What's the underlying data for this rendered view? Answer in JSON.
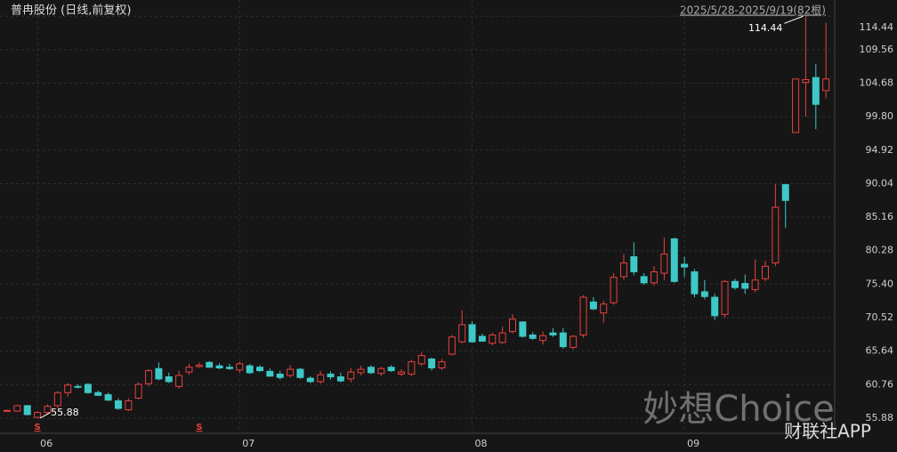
{
  "chart_data": {
    "type": "candlestick",
    "title": "普冉股份 (日线,前复权)",
    "subtitle": "2025/5/28-2025/9/19(82根)",
    "watermark": "妙想Choice",
    "brand": "财联社APP",
    "up_color": "#e8413f",
    "down_color": "#3ec8c8",
    "categories": [
      null,
      null,
      null,
      "06",
      null,
      null,
      null,
      null,
      null,
      null,
      null,
      null,
      null,
      null,
      null,
      null,
      null,
      null,
      null,
      null,
      null,
      null,
      null,
      "07",
      null,
      null,
      null,
      null,
      null,
      null,
      null,
      null,
      null,
      null,
      null,
      null,
      null,
      null,
      null,
      null,
      null,
      null,
      null,
      null,
      null,
      null,
      "08",
      null,
      null,
      null,
      null,
      null,
      null,
      null,
      null,
      null,
      null,
      null,
      null,
      null,
      null,
      null,
      null,
      null,
      null,
      null,
      null,
      "09",
      null,
      null,
      null,
      null,
      null,
      null,
      null,
      null,
      null,
      null,
      null,
      null,
      null,
      null
    ],
    "signals": [
      null,
      null,
      null,
      "S",
      null,
      null,
      null,
      null,
      null,
      null,
      null,
      null,
      null,
      null,
      null,
      null,
      null,
      null,
      null,
      "S",
      null,
      null,
      null,
      null,
      null,
      null,
      null,
      null,
      null,
      null,
      null,
      null,
      null,
      null,
      null,
      null,
      null,
      null,
      null,
      null,
      null,
      null,
      null,
      null,
      null,
      null,
      null,
      null,
      null,
      null,
      null,
      null,
      null,
      null,
      null,
      null,
      null,
      null,
      null,
      null,
      null,
      null,
      null,
      null,
      null,
      null,
      null,
      null,
      null,
      null,
      null,
      null,
      null,
      null,
      null,
      null,
      null,
      null,
      null,
      null,
      null,
      null
    ],
    "open": [
      57,
      56.9,
      57.7,
      56.0,
      56.7,
      57.7,
      59.6,
      60.5,
      60.8,
      59.6,
      59.3,
      58.4,
      57.1,
      58.8,
      60.9,
      63.1,
      61.9,
      60.5,
      62.6,
      63.4,
      64.0,
      63.5,
      63.3,
      62.9,
      63.5,
      63.3,
      62.7,
      62.3,
      62.1,
      63.0,
      61.7,
      61.2,
      62.3,
      61.9,
      61.6,
      62.5,
      63.3,
      62.4,
      63.3,
      62.3,
      62.3,
      63.8,
      64.5,
      63.2,
      65.2,
      67.0,
      69.5,
      67.8,
      66.8,
      66.9,
      68.5,
      69.9,
      68.0,
      67.2,
      68.3,
      68.3,
      66.2,
      68.0,
      72.8,
      71.2,
      72.7,
      76.5,
      79.4,
      76.5,
      75.6,
      77.0,
      82.0,
      78.3,
      77.2,
      74.3,
      73.5,
      71.0,
      75.8,
      75.5,
      74.6,
      76.2,
      78.5,
      89.9,
      97.5,
      104.8,
      105.5,
      103.6
    ],
    "high": [
      57.1,
      57.8,
      57.8,
      56.9,
      57.9,
      59.8,
      61.0,
      60.8,
      61.0,
      59.9,
      59.6,
      58.8,
      58.8,
      61.1,
      63.0,
      64.0,
      62.5,
      62.8,
      63.8,
      64.0,
      64.2,
      63.9,
      63.8,
      64.1,
      63.8,
      63.6,
      63.1,
      62.8,
      63.6,
      63.2,
      62.0,
      62.8,
      62.7,
      62.5,
      63.2,
      63.5,
      63.6,
      63.4,
      63.6,
      63.0,
      64.4,
      65.5,
      64.7,
      64.5,
      68.0,
      71.6,
      70.0,
      68.2,
      68.3,
      69.2,
      71.0,
      70.0,
      68.4,
      68.5,
      69.0,
      69.0,
      68.0,
      73.8,
      73.5,
      73.0,
      77.0,
      79.8,
      81.5,
      77.0,
      78.0,
      82.2,
      82.2,
      79.4,
      77.6,
      76.0,
      74.0,
      76.0,
      76.2,
      76.8,
      79.0,
      78.8,
      90.0,
      90.0,
      105.3,
      114.44,
      107.5,
      113.5
    ],
    "low": [
      56.9,
      56.8,
      56.3,
      55.88,
      56.5,
      57.3,
      59.0,
      60.2,
      59.4,
      59.1,
      58.4,
      57.1,
      56.9,
      58.6,
      60.5,
      61.4,
      61.0,
      60.2,
      62.2,
      63.2,
      63.2,
      63.0,
      62.9,
      62.5,
      62.3,
      62.6,
      61.9,
      61.5,
      61.8,
      61.6,
      61.0,
      60.9,
      61.5,
      61.1,
      61.1,
      62.1,
      62.3,
      62.0,
      62.6,
      62.0,
      62.0,
      63.5,
      62.8,
      62.9,
      65.0,
      66.8,
      66.9,
      67.0,
      66.5,
      66.7,
      68.2,
      67.6,
      67.3,
      66.6,
      67.7,
      66.0,
      65.9,
      67.6,
      71.6,
      69.8,
      72.4,
      76.0,
      76.7,
      75.3,
      75.2,
      76.0,
      75.6,
      76.4,
      73.5,
      73.2,
      70.2,
      70.5,
      74.6,
      74.0,
      74.2,
      75.8,
      78.0,
      83.6,
      97.5,
      99.8,
      98.0,
      102.5
    ],
    "close": [
      57.0,
      57.7,
      56.4,
      56.7,
      57.6,
      59.6,
      60.7,
      60.4,
      59.6,
      59.2,
      58.5,
      57.3,
      58.4,
      60.8,
      62.8,
      61.6,
      61.2,
      62.1,
      63.3,
      63.6,
      63.3,
      63.2,
      63.1,
      63.8,
      62.5,
      62.8,
      62.0,
      61.8,
      63.0,
      61.8,
      61.2,
      62.2,
      61.9,
      61.3,
      62.6,
      63.0,
      62.5,
      63.1,
      62.8,
      62.6,
      64.1,
      65.0,
      63.2,
      64.1,
      67.7,
      69.5,
      67.0,
      67.1,
      68.0,
      68.3,
      70.3,
      67.8,
      67.5,
      67.9,
      68.0,
      66.3,
      67.8,
      73.5,
      71.8,
      72.5,
      76.4,
      78.5,
      77.2,
      75.6,
      77.2,
      79.8,
      75.8,
      77.9,
      74.0,
      73.6,
      70.8,
      75.8,
      74.9,
      74.8,
      76.0,
      78.0,
      86.6,
      87.6,
      105.3,
      105.2,
      101.6,
      105.3
    ],
    "max_label": 114.44,
    "min_label": 55.88,
    "ylim": [
      53.67,
      114.6
    ],
    "yticks": [
      55.88,
      60.76,
      65.64,
      70.52,
      {
        "value": 75.4,
        "label": "75.40"
      },
      80.28,
      85.16,
      90.04,
      94.92,
      {
        "value": 99.8,
        "label": "99.80"
      },
      104.68,
      109.56,
      114.44
    ],
    "grid": true
  }
}
